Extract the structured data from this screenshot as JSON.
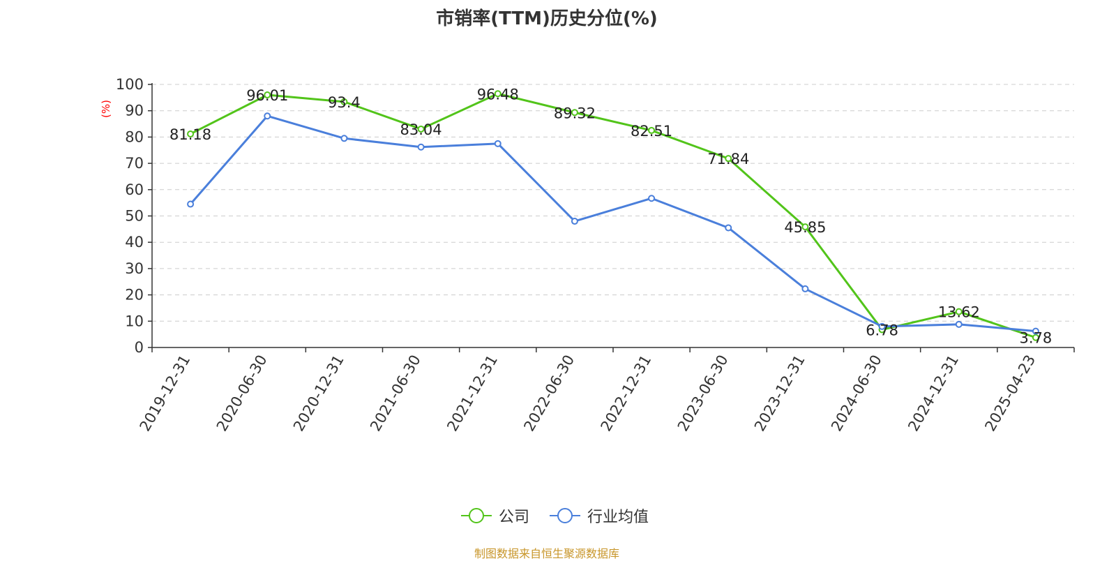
{
  "title": "市销率(TTM)历史分位(%)",
  "source": "制图数据来自恒生聚源数据库",
  "colors": {
    "company": "#52c41a",
    "industry": "#4a7fdb",
    "axis": "#333333",
    "grid": "#cccccc",
    "unit": "#ff0000"
  },
  "chart_data": {
    "type": "line",
    "title": "市销率(TTM)历史分位(%)",
    "ylabel": "(%)",
    "ylim": [
      0,
      100
    ],
    "yticks": [
      0,
      10,
      20,
      30,
      40,
      50,
      60,
      70,
      80,
      90,
      100
    ],
    "grid": true,
    "legend_position": "bottom",
    "categories": [
      "2019-12-31",
      "2020-06-30",
      "2020-12-31",
      "2021-06-30",
      "2021-12-31",
      "2022-06-30",
      "2022-12-31",
      "2023-06-30",
      "2023-12-31",
      "2024-06-30",
      "2024-12-31",
      "2025-04-23"
    ],
    "series": [
      {
        "name": "公司",
        "color": "#52c41a",
        "values": [
          81.18,
          96.01,
          93.4,
          83.04,
          96.48,
          89.32,
          82.51,
          71.84,
          45.85,
          6.78,
          13.62,
          3.78
        ],
        "labels": [
          "81.18",
          "96.01",
          "93.4",
          "83.04",
          "96.48",
          "89.32",
          "82.51",
          "71.84",
          "45.85",
          "6.78",
          "13.62",
          "3.78"
        ]
      },
      {
        "name": "行业均值",
        "color": "#4a7fdb",
        "values": [
          54.5,
          88,
          79.5,
          76.2,
          77.5,
          48,
          56.7,
          45.5,
          22.3,
          8,
          8.8,
          6.2
        ]
      }
    ]
  }
}
